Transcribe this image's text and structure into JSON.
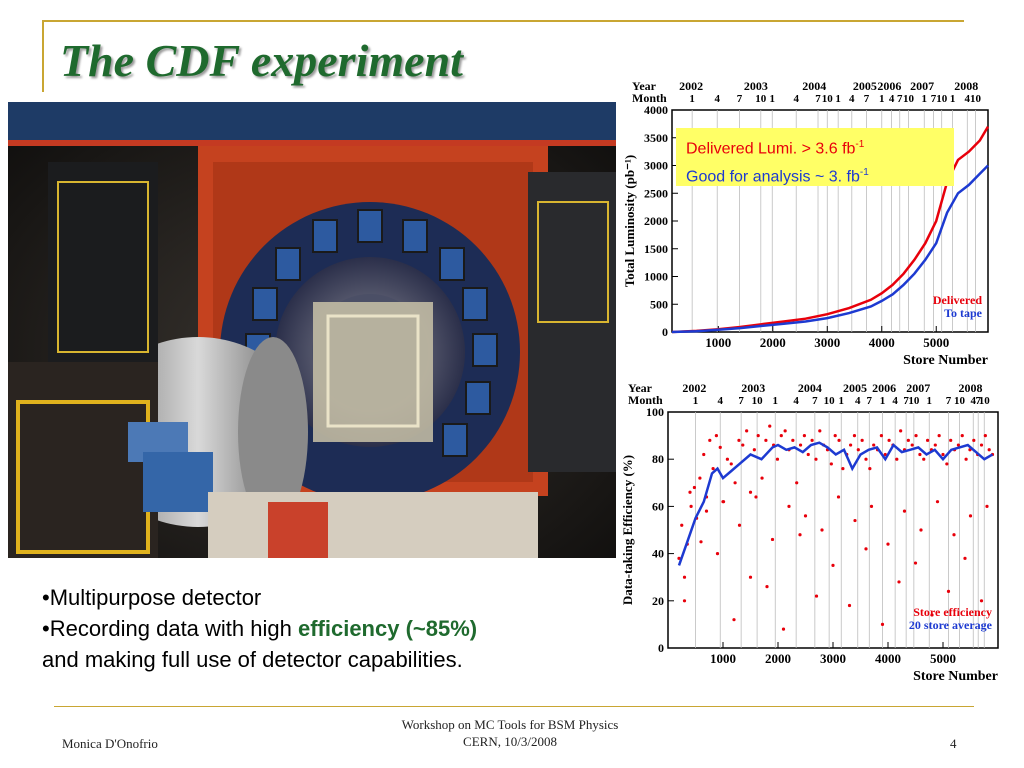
{
  "slide": {
    "title": "The CDF experiment",
    "bullet1": "•Multipurpose detector",
    "bullet2_prefix": "•Recording data with high ",
    "bullet2_highlight": "efficiency (~85%)",
    "bullet3": "and making full use of detector capabilities.",
    "footer_author": "Monica D'Onofrio",
    "footer_event_line1": "Workshop on MC Tools for BSM Physics",
    "footer_event_line2": "CERN, 10/3/2008",
    "page_number": "4",
    "accent_color": "#1f6a2e",
    "rule_color": "#c9a633"
  },
  "callout": {
    "delivered_text": "Delivered Lumi. > 3.6  fb",
    "analysis_text": "Good for analysis ~ 3. fb",
    "exponent": "-1",
    "delivered_color": "#e8000b",
    "analysis_color": "#1d3ad1",
    "background": "#ffff66"
  },
  "chart_data": [
    {
      "type": "line",
      "ylabel": "Total Luminosity (pb⁻¹)",
      "xlabel": "Store Number",
      "top_axis": {
        "year_label": "Year",
        "month_label": "Month",
        "years": [
          {
            "label": "2002",
            "x": 500
          },
          {
            "label": "2003",
            "x": 1690
          },
          {
            "label": "2004",
            "x": 2760
          },
          {
            "label": "2005",
            "x": 3690
          },
          {
            "label": "2006",
            "x": 4140
          },
          {
            "label": "2007",
            "x": 4740
          },
          {
            "label": "2008",
            "x": 5550
          }
        ],
        "months": [
          {
            "label": "1",
            "x": 520
          },
          {
            "label": "4",
            "x": 980
          },
          {
            "label": "7",
            "x": 1390
          },
          {
            "label": "10",
            "x": 1780
          },
          {
            "label": "1",
            "x": 1990
          },
          {
            "label": "4",
            "x": 2430
          },
          {
            "label": "7",
            "x": 2830
          },
          {
            "label": "10",
            "x": 3000
          },
          {
            "label": "1",
            "x": 3200
          },
          {
            "label": "4",
            "x": 3450
          },
          {
            "label": "7",
            "x": 3720
          },
          {
            "label": "1",
            "x": 4000
          },
          {
            "label": "4",
            "x": 4180
          },
          {
            "label": "7",
            "x": 4330
          },
          {
            "label": "10",
            "x": 4490
          },
          {
            "label": "1",
            "x": 4780
          },
          {
            "label": "7",
            "x": 4950
          },
          {
            "label": "10",
            "x": 5100
          },
          {
            "label": "1",
            "x": 5300
          },
          {
            "label": "4",
            "x": 5570
          },
          {
            "label": "10",
            "x": 5720
          }
        ]
      },
      "xlim": [
        150,
        5950
      ],
      "ylim": [
        0,
        4000
      ],
      "xticks": [
        1000,
        2000,
        3000,
        4000,
        5000
      ],
      "yticks": [
        0,
        500,
        1000,
        1500,
        2000,
        2500,
        3000,
        3500,
        4000
      ],
      "series": [
        {
          "name": "Delivered",
          "color": "#e8000b",
          "x": [
            150,
            600,
            1000,
            1400,
            1800,
            2200,
            2600,
            3000,
            3400,
            3800,
            4000,
            4200,
            4400,
            4600,
            4800,
            5000,
            5200,
            5400,
            5600,
            5800,
            5950
          ],
          "y": [
            0,
            20,
            50,
            90,
            140,
            190,
            240,
            320,
            430,
            580,
            700,
            850,
            1050,
            1300,
            1600,
            2000,
            2700,
            3100,
            3250,
            3450,
            3700
          ]
        },
        {
          "name": "To tape",
          "color": "#1d3ad1",
          "x": [
            150,
            600,
            1000,
            1400,
            1800,
            2200,
            2600,
            3000,
            3400,
            3800,
            4000,
            4200,
            4400,
            4600,
            4800,
            5000,
            5200,
            5400,
            5600,
            5800,
            5950
          ],
          "y": [
            0,
            15,
            40,
            70,
            110,
            150,
            190,
            250,
            340,
            460,
            560,
            680,
            850,
            1050,
            1300,
            1600,
            2150,
            2500,
            2650,
            2850,
            3000
          ]
        }
      ]
    },
    {
      "type": "scatter",
      "ylabel": "Data-taking Efficiency (%)",
      "xlabel": "Store Number",
      "top_axis": {
        "year_label": "Year",
        "month_label": "Month",
        "years": [
          {
            "label": "2002",
            "x": 480
          },
          {
            "label": "2003",
            "x": 1550
          },
          {
            "label": "2004",
            "x": 2580
          },
          {
            "label": "2005",
            "x": 3400
          },
          {
            "label": "2006",
            "x": 3930
          },
          {
            "label": "2007",
            "x": 4550
          },
          {
            "label": "2008",
            "x": 5500
          }
        ],
        "months": [
          {
            "label": "1",
            "x": 500
          },
          {
            "label": "4",
            "x": 950
          },
          {
            "label": "7",
            "x": 1330
          },
          {
            "label": "10",
            "x": 1620
          },
          {
            "label": "1",
            "x": 1950
          },
          {
            "label": "4",
            "x": 2330
          },
          {
            "label": "7",
            "x": 2670
          },
          {
            "label": "10",
            "x": 2930
          },
          {
            "label": "1",
            "x": 3150
          },
          {
            "label": "4",
            "x": 3450
          },
          {
            "label": "7",
            "x": 3660
          },
          {
            "label": "1",
            "x": 3900
          },
          {
            "label": "4",
            "x": 4130
          },
          {
            "label": "7",
            "x": 4330
          },
          {
            "label": "10",
            "x": 4470
          },
          {
            "label": "1",
            "x": 4750
          },
          {
            "label": "7",
            "x": 5100
          },
          {
            "label": "10",
            "x": 5300
          },
          {
            "label": "4",
            "x": 5550
          },
          {
            "label": "7",
            "x": 5640
          },
          {
            "label": "10",
            "x": 5750
          }
        ]
      },
      "xlim": [
        0,
        6000
      ],
      "ylim": [
        0,
        100
      ],
      "xticks": [
        1000,
        2000,
        3000,
        4000,
        5000
      ],
      "yticks": [
        0,
        20,
        40,
        60,
        80,
        100
      ],
      "series": [
        {
          "name": "Store efficiency",
          "color": "#e8000b",
          "style": "points",
          "x": [
            200,
            250,
            300,
            350,
            420,
            480,
            520,
            580,
            650,
            700,
            760,
            820,
            880,
            950,
            1010,
            1080,
            1150,
            1220,
            1290,
            1360,
            1430,
            1500,
            1570,
            1640,
            1710,
            1780,
            1850,
            1920,
            1990,
            2060,
            2130,
            2200,
            2270,
            2340,
            2410,
            2480,
            2550,
            2620,
            2690,
            2760,
            2830,
            2900,
            2970,
            3040,
            3110,
            3180,
            3250,
            3320,
            3390,
            3460,
            3530,
            3600,
            3670,
            3740,
            3810,
            3880,
            3950,
            4020,
            4090,
            4160,
            4230,
            4300,
            4370,
            4440,
            4510,
            4580,
            4650,
            4720,
            4790,
            4860,
            4930,
            5000,
            5070,
            5140,
            5210,
            5280,
            5350,
            5420,
            5490,
            5560,
            5630,
            5700,
            5770,
            5840,
            5900,
            300,
            600,
            900,
            1200,
            1500,
            1800,
            2100,
            2400,
            2700,
            3000,
            3300,
            3600,
            3900,
            4200,
            4500,
            4800,
            5100,
            5400,
            5700,
            400,
            700,
            1000,
            1300,
            1600,
            1900,
            2200,
            2500,
            2800,
            3100,
            3400,
            3700,
            4000,
            4300,
            4600,
            4900,
            5200,
            5500,
            5800
          ],
          "y": [
            38,
            52,
            30,
            44,
            60,
            68,
            55,
            72,
            82,
            64,
            88,
            76,
            90,
            85,
            62,
            80,
            78,
            70,
            88,
            86,
            92,
            66,
            84,
            90,
            72,
            88,
            94,
            86,
            80,
            90,
            92,
            84,
            88,
            70,
            86,
            90,
            82,
            88,
            80,
            92,
            86,
            84,
            78,
            90,
            88,
            76,
            82,
            86,
            90,
            84,
            88,
            80,
            76,
            86,
            84,
            90,
            82,
            88,
            86,
            80,
            92,
            84,
            88,
            86,
            90,
            82,
            80,
            88,
            84,
            86,
            90,
            82,
            78,
            88,
            84,
            86,
            90,
            80,
            84,
            88,
            82,
            86,
            90,
            84,
            82,
            20,
            45,
            40,
            12,
            30,
            26,
            8,
            48,
            22,
            35,
            18,
            42,
            10,
            28,
            36,
            14,
            24,
            38,
            20,
            66,
            58,
            62,
            52,
            64,
            46,
            60,
            56,
            50,
            64,
            54,
            60,
            44,
            58,
            50,
            62,
            48,
            56,
            60
          ]
        },
        {
          "name": "20 store average",
          "color": "#1d3ad1",
          "style": "line",
          "x": [
            200,
            350,
            500,
            650,
            800,
            900,
            1000,
            1150,
            1300,
            1500,
            1700,
            1900,
            2000,
            2150,
            2300,
            2450,
            2600,
            2750,
            2900,
            3050,
            3200,
            3350,
            3500,
            3650,
            3800,
            3950,
            4100,
            4250,
            4400,
            4550,
            4700,
            4850,
            5000,
            5150,
            5300,
            5450,
            5600,
            5750,
            5900
          ],
          "y": [
            35,
            45,
            55,
            62,
            74,
            76,
            72,
            75,
            78,
            82,
            80,
            85,
            86,
            84,
            85,
            83,
            86,
            87,
            85,
            82,
            84,
            76,
            82,
            84,
            85,
            80,
            86,
            83,
            84,
            85,
            82,
            84,
            80,
            84,
            85,
            86,
            83,
            80,
            82
          ]
        }
      ]
    }
  ]
}
